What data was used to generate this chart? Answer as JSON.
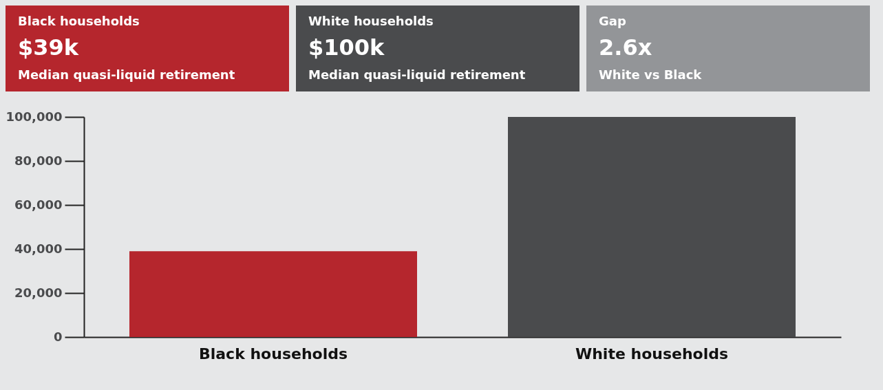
{
  "chart_data": [
    {
      "type": "other",
      "color": "#b5262d",
      "annotations": [
        "Black households",
        "$39k",
        "Median quasi-liquid retirement"
      ]
    },
    {
      "type": "other",
      "color": "#4a4b4d",
      "annotations": [
        "White households",
        "$100k",
        "Median quasi-liquid retirement"
      ]
    },
    {
      "type": "other",
      "color": "#939598",
      "annotations": [
        "Gap",
        "2.6x",
        "White vs Black"
      ]
    },
    {
      "type": "bar",
      "categories": [
        "Black households",
        "White households"
      ],
      "values": [
        39000,
        100000
      ],
      "colors": [
        "#b5262d",
        "#4a4b4d"
      ],
      "ylim": [
        0,
        100000
      ],
      "yticks": [
        0,
        {
          "value": 20000,
          "label": "20,000"
        },
        {
          "value": 40000,
          "label": "40,000"
        },
        {
          "value": 60000,
          "label": "60,000"
        },
        {
          "value": 80000,
          "label": "80,000"
        },
        {
          "value": 100000,
          "label": "100,000"
        }
      ]
    }
  ]
}
